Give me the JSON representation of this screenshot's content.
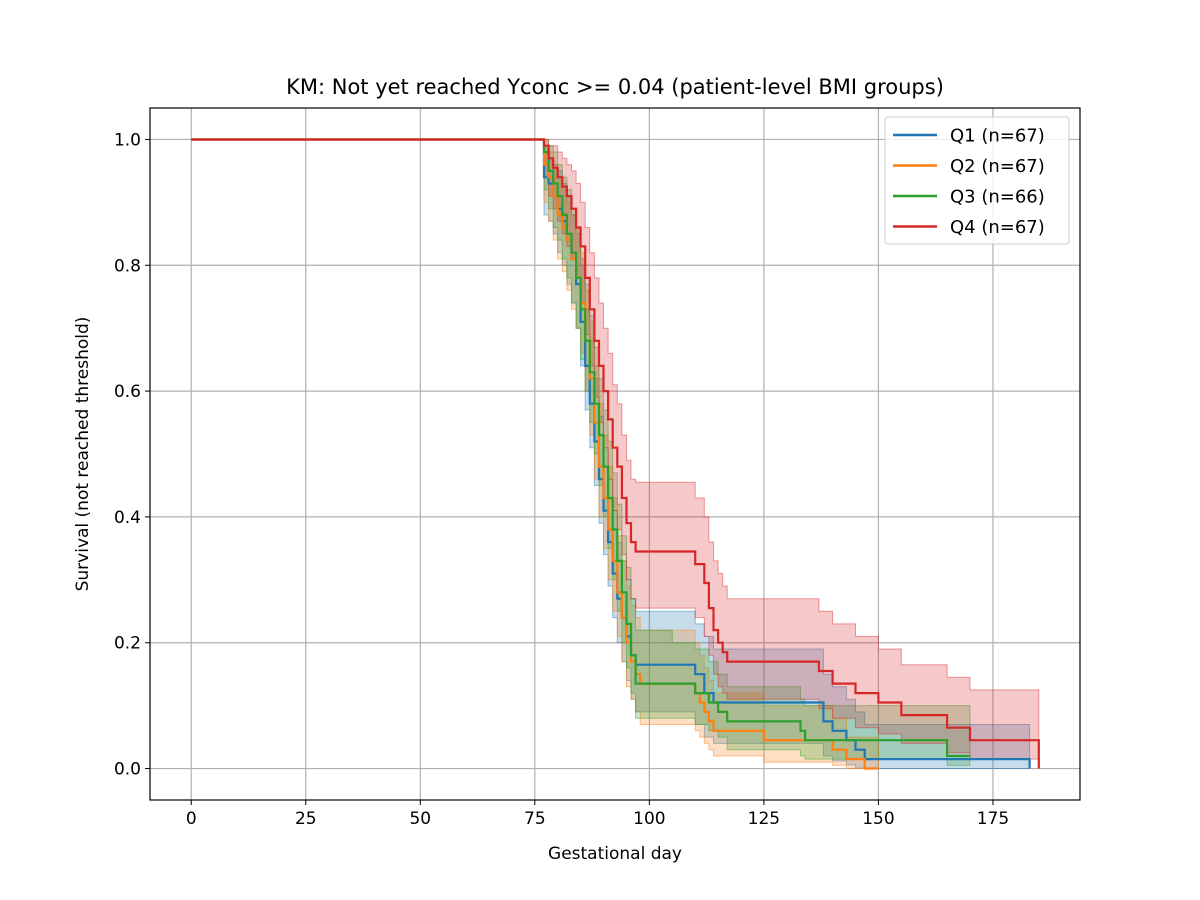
{
  "chart_data": {
    "type": "line",
    "title": "KM: Not yet reached Yconc >= 0.04 (patient-level BMI groups)",
    "xlabel": "Gestational day",
    "ylabel": "Survival (not reached threshold)",
    "xlim": [
      -9,
      194
    ],
    "ylim": [
      -0.05,
      1.05
    ],
    "xticks": [
      0,
      25,
      50,
      75,
      100,
      125,
      150,
      175
    ],
    "yticks": [
      0.0,
      0.2,
      0.4,
      0.6,
      0.8,
      1.0
    ],
    "ytick_labels": [
      "0.0",
      "0.2",
      "0.4",
      "0.6",
      "0.8",
      "1.0"
    ],
    "grid": true,
    "legend_position": "top-right",
    "step": "post",
    "series": [
      {
        "name": "Q1 (n=67)",
        "color": "#1f77b4",
        "x": [
          0,
          77,
          78,
          79,
          80,
          81,
          82,
          83,
          84,
          85,
          86,
          87,
          88,
          89,
          90,
          91,
          92,
          93,
          94,
          95,
          96,
          97,
          98,
          110,
          112,
          114,
          120,
          138,
          140,
          143,
          145,
          147,
          183
        ],
        "y": [
          1.0,
          0.94,
          0.93,
          0.91,
          0.89,
          0.87,
          0.84,
          0.81,
          0.77,
          0.71,
          0.64,
          0.58,
          0.52,
          0.46,
          0.41,
          0.36,
          0.31,
          0.27,
          0.24,
          0.21,
          0.18,
          0.165,
          0.165,
          0.15,
          0.12,
          0.105,
          0.105,
          0.075,
          0.06,
          0.045,
          0.03,
          0.015,
          0.0
        ],
        "ci_lower": [
          1.0,
          0.88,
          0.87,
          0.85,
          0.82,
          0.8,
          0.77,
          0.74,
          0.7,
          0.64,
          0.57,
          0.51,
          0.45,
          0.39,
          0.34,
          0.29,
          0.24,
          0.2,
          0.17,
          0.14,
          0.11,
          0.09,
          0.09,
          0.07,
          0.05,
          0.04,
          0.04,
          0.02,
          0.012,
          0.006,
          0.002,
          0.0,
          0.0
        ],
        "ci_upper": [
          1.0,
          0.98,
          0.97,
          0.96,
          0.95,
          0.93,
          0.91,
          0.88,
          0.85,
          0.8,
          0.73,
          0.68,
          0.62,
          0.56,
          0.51,
          0.46,
          0.41,
          0.36,
          0.33,
          0.3,
          0.27,
          0.25,
          0.25,
          0.23,
          0.21,
          0.19,
          0.19,
          0.15,
          0.13,
          0.11,
          0.09,
          0.07,
          0.07
        ]
      },
      {
        "name": "Q2 (n=67)",
        "color": "#ff7f0e",
        "x": [
          0,
          77,
          78,
          79,
          80,
          81,
          82,
          83,
          84,
          85,
          86,
          87,
          88,
          89,
          90,
          91,
          92,
          93,
          94,
          95,
          96,
          97,
          98,
          100,
          110,
          111,
          112,
          113,
          114,
          115,
          120,
          125,
          140,
          143,
          147,
          150
        ],
        "y": [
          1.0,
          0.96,
          0.94,
          0.91,
          0.88,
          0.86,
          0.84,
          0.81,
          0.78,
          0.74,
          0.68,
          0.62,
          0.55,
          0.48,
          0.43,
          0.38,
          0.33,
          0.28,
          0.24,
          0.2,
          0.17,
          0.15,
          0.135,
          0.135,
          0.12,
          0.105,
          0.09,
          0.075,
          0.06,
          0.06,
          0.06,
          0.045,
          0.03,
          0.015,
          0.0,
          0.0
        ],
        "ci_lower": [
          1.0,
          0.9,
          0.87,
          0.84,
          0.81,
          0.79,
          0.76,
          0.73,
          0.7,
          0.66,
          0.6,
          0.53,
          0.46,
          0.4,
          0.35,
          0.3,
          0.25,
          0.21,
          0.17,
          0.13,
          0.11,
          0.09,
          0.07,
          0.07,
          0.06,
          0.05,
          0.04,
          0.03,
          0.02,
          0.02,
          0.02,
          0.01,
          0.005,
          0.0,
          0.0,
          0.0
        ],
        "ci_upper": [
          1.0,
          0.99,
          0.98,
          0.96,
          0.94,
          0.92,
          0.9,
          0.88,
          0.86,
          0.82,
          0.76,
          0.71,
          0.64,
          0.58,
          0.53,
          0.48,
          0.43,
          0.37,
          0.33,
          0.29,
          0.26,
          0.24,
          0.22,
          0.22,
          0.2,
          0.18,
          0.16,
          0.14,
          0.12,
          0.12,
          0.12,
          0.1,
          0.08,
          0.05,
          0.05,
          0.05
        ]
      },
      {
        "name": "Q3 (n=66)",
        "color": "#2ca02c",
        "x": [
          0,
          77,
          78,
          79,
          80,
          81,
          82,
          83,
          84,
          85,
          86,
          87,
          88,
          89,
          90,
          91,
          92,
          93,
          94,
          95,
          96,
          97,
          105,
          110,
          113,
          115,
          117,
          120,
          133,
          134,
          137,
          140,
          145,
          165,
          170
        ],
        "y": [
          1.0,
          0.98,
          0.95,
          0.93,
          0.91,
          0.88,
          0.85,
          0.82,
          0.78,
          0.73,
          0.68,
          0.63,
          0.58,
          0.53,
          0.48,
          0.43,
          0.38,
          0.33,
          0.28,
          0.23,
          0.18,
          0.135,
          0.135,
          0.12,
          0.105,
          0.09,
          0.075,
          0.075,
          0.06,
          0.045,
          0.045,
          0.045,
          0.045,
          0.02,
          0.02
        ],
        "ci_lower": [
          1.0,
          0.92,
          0.89,
          0.86,
          0.84,
          0.81,
          0.78,
          0.74,
          0.7,
          0.65,
          0.6,
          0.55,
          0.5,
          0.45,
          0.4,
          0.35,
          0.3,
          0.25,
          0.2,
          0.16,
          0.12,
          0.08,
          0.08,
          0.07,
          0.06,
          0.05,
          0.03,
          0.03,
          0.02,
          0.015,
          0.015,
          0.015,
          0.015,
          0.005,
          0.005
        ],
        "ci_upper": [
          1.0,
          1.0,
          0.99,
          0.98,
          0.96,
          0.94,
          0.92,
          0.89,
          0.86,
          0.81,
          0.77,
          0.72,
          0.67,
          0.62,
          0.57,
          0.52,
          0.47,
          0.42,
          0.37,
          0.32,
          0.27,
          0.22,
          0.2,
          0.19,
          0.17,
          0.15,
          0.13,
          0.13,
          0.11,
          0.1,
          0.1,
          0.1,
          0.1,
          0.1,
          0.1
        ]
      },
      {
        "name": "Q4 (n=67)",
        "color": "#d62728",
        "x": [
          0,
          77,
          78,
          79,
          80,
          81,
          82,
          83,
          84,
          85,
          86,
          87,
          88,
          89,
          90,
          91,
          92,
          93,
          94,
          95,
          96,
          97,
          98,
          110,
          112,
          113,
          114,
          115,
          116,
          117,
          118,
          120,
          137,
          140,
          145,
          150,
          155,
          160,
          165,
          170,
          185
        ],
        "y": [
          1.0,
          0.99,
          0.97,
          0.955,
          0.94,
          0.925,
          0.91,
          0.89,
          0.86,
          0.83,
          0.78,
          0.73,
          0.68,
          0.64,
          0.6,
          0.555,
          0.51,
          0.48,
          0.43,
          0.39,
          0.36,
          0.345,
          0.345,
          0.325,
          0.295,
          0.255,
          0.22,
          0.2,
          0.185,
          0.17,
          0.17,
          0.17,
          0.155,
          0.135,
          0.12,
          0.105,
          0.085,
          0.085,
          0.065,
          0.045,
          0.0
        ],
        "ci_lower": [
          1.0,
          0.94,
          0.91,
          0.89,
          0.87,
          0.85,
          0.83,
          0.81,
          0.78,
          0.74,
          0.69,
          0.64,
          0.59,
          0.55,
          0.51,
          0.46,
          0.41,
          0.38,
          0.34,
          0.3,
          0.27,
          0.255,
          0.255,
          0.24,
          0.21,
          0.18,
          0.15,
          0.13,
          0.12,
          0.11,
          0.11,
          0.11,
          0.095,
          0.08,
          0.065,
          0.055,
          0.04,
          0.04,
          0.025,
          0.015,
          0.0
        ],
        "ci_upper": [
          1.0,
          1.0,
          0.99,
          0.99,
          0.98,
          0.97,
          0.96,
          0.95,
          0.93,
          0.9,
          0.86,
          0.82,
          0.78,
          0.74,
          0.7,
          0.66,
          0.61,
          0.58,
          0.53,
          0.49,
          0.46,
          0.455,
          0.455,
          0.43,
          0.4,
          0.36,
          0.33,
          0.31,
          0.29,
          0.27,
          0.27,
          0.27,
          0.25,
          0.23,
          0.21,
          0.19,
          0.165,
          0.165,
          0.145,
          0.125,
          0.125
        ]
      }
    ]
  }
}
